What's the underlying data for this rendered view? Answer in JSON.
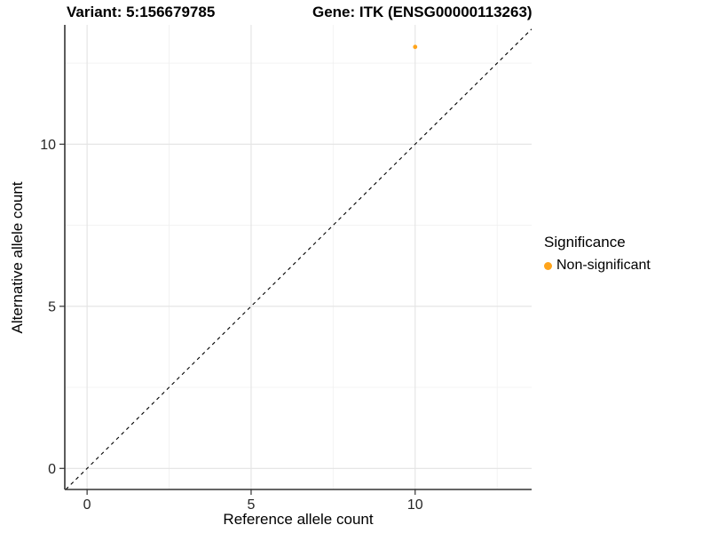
{
  "titles": {
    "variant": "Variant: 5:156679785",
    "gene": "Gene: ITK (ENSG00000113263)"
  },
  "legend": {
    "title": "Significance",
    "items": [
      {
        "label": "Non-significant",
        "color": "#FFA41B"
      }
    ]
  },
  "chart_data": {
    "type": "scatter",
    "title": "Variant: 5:156679785   Gene: ITK (ENSG00000113263)",
    "xlabel": "Reference allele count",
    "ylabel": "Alternative allele count",
    "points": [
      {
        "x": 10,
        "y": 13,
        "series": "Non-significant",
        "color": "#FFA41B"
      }
    ],
    "x_ticks": [
      0,
      5,
      10
    ],
    "y_ticks": [
      0,
      5,
      10
    ],
    "x_minor_ticks": [
      2.5,
      7.5,
      12.5
    ],
    "y_minor_ticks": [
      2.5,
      7.5,
      12.5
    ],
    "xlim": [
      -0.68,
      13.55
    ],
    "ylim": [
      -0.65,
      13.68
    ],
    "reference_line": {
      "type": "identity",
      "slope": 1,
      "intercept": 0,
      "style": "dashed",
      "color": "#000000"
    },
    "grid": true,
    "legend_position": "right",
    "colors": {
      "point": "#FFA41B",
      "major_grid": "#E3E3E3",
      "minor_grid": "#F0F0F0",
      "axis_line": "#333333",
      "tick_label": "#262626"
    }
  }
}
